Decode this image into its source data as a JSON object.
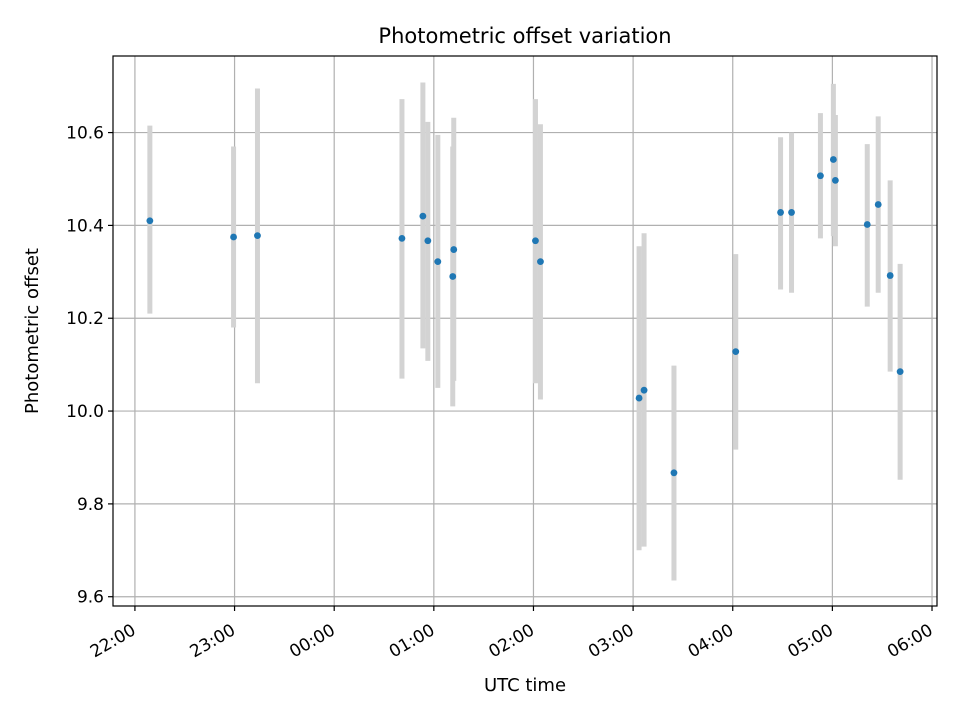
{
  "chart_data": {
    "type": "scatter",
    "title": "Photometric offset variation",
    "xlabel": "UTC time",
    "ylabel": "Photometric offset",
    "xlim_hours": [
      -2.22,
      6.05
    ],
    "ylim": [
      9.58,
      10.765
    ],
    "grid": true,
    "x_ticks": [
      {
        "h": -2,
        "label": "22:00"
      },
      {
        "h": -1,
        "label": "23:00"
      },
      {
        "h": 0,
        "label": "00:00"
      },
      {
        "h": 1,
        "label": "01:00"
      },
      {
        "h": 2,
        "label": "02:00"
      },
      {
        "h": 3,
        "label": "03:00"
      },
      {
        "h": 4,
        "label": "04:00"
      },
      {
        "h": 5,
        "label": "05:00"
      },
      {
        "h": 6,
        "label": "06:00"
      }
    ],
    "y_ticks": [
      {
        "v": 9.6,
        "label": "9.6"
      },
      {
        "v": 9.8,
        "label": "9.8"
      },
      {
        "v": 10.0,
        "label": "10.0"
      },
      {
        "v": 10.2,
        "label": "10.2"
      },
      {
        "v": 10.4,
        "label": "10.4"
      },
      {
        "v": 10.6,
        "label": "10.6"
      }
    ],
    "colors": {
      "point": "#1f77b4",
      "errorbar": "#d3d3d3",
      "grid": "#b0b0b0",
      "axes": "#000000"
    },
    "points": [
      {
        "t": "22:09",
        "x_h": -1.85,
        "y": 10.41,
        "ylow": 10.21,
        "yhigh": 10.615
      },
      {
        "t": "22:59",
        "x_h": -1.01,
        "y": 10.375,
        "ylow": 10.18,
        "yhigh": 10.57
      },
      {
        "t": "23:14",
        "x_h": -0.77,
        "y": 10.378,
        "ylow": 10.06,
        "yhigh": 10.695
      },
      {
        "t": "00:41",
        "x_h": 0.68,
        "y": 10.372,
        "ylow": 10.07,
        "yhigh": 10.672
      },
      {
        "t": "00:53",
        "x_h": 0.89,
        "y": 10.42,
        "ylow": 10.135,
        "yhigh": 10.708
      },
      {
        "t": "00:56",
        "x_h": 0.94,
        "y": 10.367,
        "ylow": 10.108,
        "yhigh": 10.623
      },
      {
        "t": "01:02",
        "x_h": 1.04,
        "y": 10.322,
        "ylow": 10.05,
        "yhigh": 10.595
      },
      {
        "t": "01:11",
        "x_h": 1.19,
        "y": 10.29,
        "ylow": 10.01,
        "yhigh": 10.57
      },
      {
        "t": "01:12",
        "x_h": 1.2,
        "y": 10.348,
        "ylow": 10.065,
        "yhigh": 10.632
      },
      {
        "t": "02:01",
        "x_h": 2.02,
        "y": 10.367,
        "ylow": 10.06,
        "yhigh": 10.672
      },
      {
        "t": "02:04",
        "x_h": 2.07,
        "y": 10.322,
        "ylow": 10.025,
        "yhigh": 10.618
      },
      {
        "t": "03:04",
        "x_h": 3.06,
        "y": 10.028,
        "ylow": 9.7,
        "yhigh": 10.355
      },
      {
        "t": "03:07",
        "x_h": 3.11,
        "y": 10.045,
        "ylow": 9.708,
        "yhigh": 10.383
      },
      {
        "t": "03:25",
        "x_h": 3.41,
        "y": 9.867,
        "ylow": 9.635,
        "yhigh": 10.098
      },
      {
        "t": "04:02",
        "x_h": 4.03,
        "y": 10.128,
        "ylow": 9.917,
        "yhigh": 10.338
      },
      {
        "t": "04:29",
        "x_h": 4.48,
        "y": 10.428,
        "ylow": 10.262,
        "yhigh": 10.59
      },
      {
        "t": "04:36",
        "x_h": 4.59,
        "y": 10.428,
        "ylow": 10.255,
        "yhigh": 10.6
      },
      {
        "t": "04:53",
        "x_h": 4.88,
        "y": 10.507,
        "ylow": 10.372,
        "yhigh": 10.642
      },
      {
        "t": "05:01",
        "x_h": 5.01,
        "y": 10.542,
        "ylow": 10.377,
        "yhigh": 10.705
      },
      {
        "t": "05:02",
        "x_h": 5.03,
        "y": 10.497,
        "ylow": 10.355,
        "yhigh": 10.638
      },
      {
        "t": "05:21",
        "x_h": 5.35,
        "y": 10.402,
        "ylow": 10.225,
        "yhigh": 10.575
      },
      {
        "t": "05:28",
        "x_h": 5.46,
        "y": 10.445,
        "ylow": 10.255,
        "yhigh": 10.635
      },
      {
        "t": "05:35",
        "x_h": 5.58,
        "y": 10.292,
        "ylow": 10.085,
        "yhigh": 10.497
      },
      {
        "t": "05:41",
        "x_h": 5.68,
        "y": 10.085,
        "ylow": 9.852,
        "yhigh": 10.317
      }
    ]
  }
}
